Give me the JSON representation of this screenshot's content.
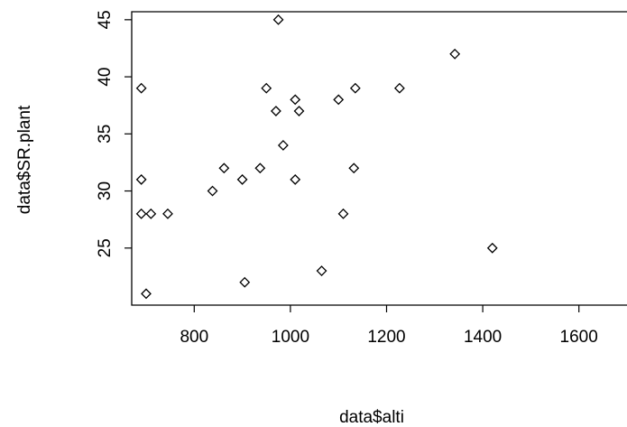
{
  "chart_data": {
    "type": "scatter",
    "title": "",
    "xlabel": "data$alti",
    "ylabel": "data$SR.plant",
    "xlim": [
      670,
      1700
    ],
    "ylim": [
      20,
      45.7
    ],
    "x_ticks": [
      800,
      1000,
      1200,
      1400,
      1600
    ],
    "y_ticks": [
      25,
      30,
      35,
      40,
      45
    ],
    "grid": false,
    "marker": "open-diamond",
    "colors": {
      "marker": "#000000",
      "axis": "#000000",
      "background": "#ffffff"
    },
    "series": [
      {
        "points": [
          {
            "x": 690,
            "y": 39
          },
          {
            "x": 690,
            "y": 31
          },
          {
            "x": 690,
            "y": 28
          },
          {
            "x": 700,
            "y": 21
          },
          {
            "x": 710,
            "y": 28
          },
          {
            "x": 745,
            "y": 28
          },
          {
            "x": 838,
            "y": 30
          },
          {
            "x": 862,
            "y": 32
          },
          {
            "x": 900,
            "y": 31
          },
          {
            "x": 905,
            "y": 22
          },
          {
            "x": 937,
            "y": 32
          },
          {
            "x": 950,
            "y": 39
          },
          {
            "x": 970,
            "y": 37
          },
          {
            "x": 975,
            "y": 45
          },
          {
            "x": 985,
            "y": 34
          },
          {
            "x": 1010,
            "y": 38
          },
          {
            "x": 1010,
            "y": 31
          },
          {
            "x": 1018,
            "y": 37
          },
          {
            "x": 1065,
            "y": 23
          },
          {
            "x": 1100,
            "y": 38
          },
          {
            "x": 1110,
            "y": 28
          },
          {
            "x": 1132,
            "y": 32
          },
          {
            "x": 1135,
            "y": 39
          },
          {
            "x": 1227,
            "y": 39
          },
          {
            "x": 1342,
            "y": 42
          },
          {
            "x": 1420,
            "y": 25
          }
        ]
      }
    ]
  }
}
